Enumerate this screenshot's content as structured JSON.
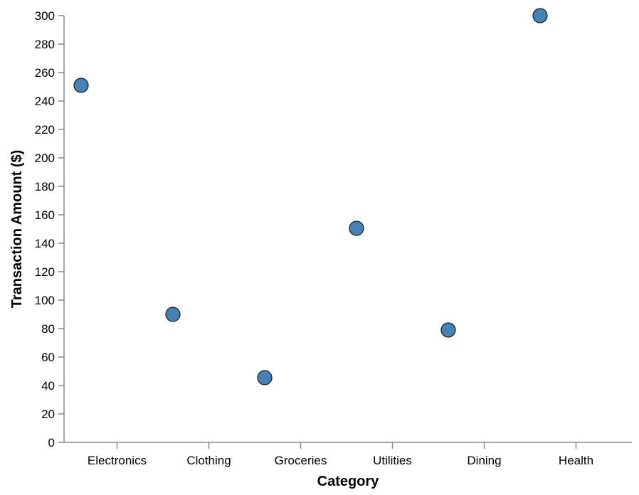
{
  "chart_data": {
    "type": "scatter",
    "categories": [
      "Electronics",
      "Clothing",
      "Groceries",
      "Utilities",
      "Dining",
      "Health"
    ],
    "points": [
      {
        "x": "Electronics",
        "position": 0,
        "y": 251
      },
      {
        "x": "Clothing",
        "position": 1,
        "y": 90
      },
      {
        "x": "Groceries",
        "position": 2,
        "y": 45.5
      },
      {
        "x": "Utilities",
        "position": 3,
        "y": 150.5
      },
      {
        "x": "Dining",
        "position": 4,
        "y": 79
      },
      {
        "x": "Health",
        "position": 5,
        "y": 300
      }
    ],
    "xlabel": "Category",
    "ylabel": "Transaction Amount ($)",
    "ylim": [
      0,
      300
    ],
    "yticks": [
      0,
      20,
      40,
      60,
      80,
      100,
      120,
      140,
      160,
      180,
      200,
      220,
      240,
      260,
      280,
      300
    ],
    "grid": false,
    "colors": {
      "point": "#4682b4",
      "point_stroke": "#1a1a1a",
      "axis": "#888888"
    }
  }
}
